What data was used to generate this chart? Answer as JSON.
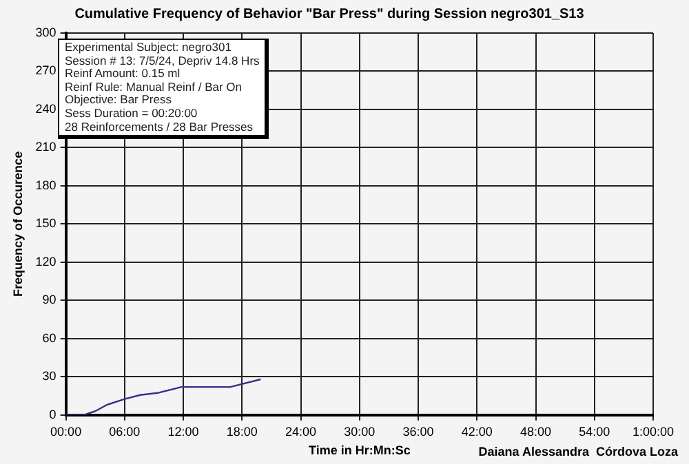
{
  "chart_data": {
    "type": "line",
    "title": "Cumulative Frequency of Behavior \"Bar Press\" during Session negro301_S13",
    "xlabel": "Time in Hr:Mn:Sc",
    "ylabel": "Frequency of Occurence",
    "annotations": [
      "Experimental Subject: negro301",
      "Session # 13: 7/5/24, Depriv 14.8 Hrs",
      "Reinf Amount: 0.15 ml",
      "Reinf Rule: Manual Reinf / Bar On",
      "Objective: Bar Press",
      "Sess Duration = 00:20:00",
      "28 Reinforcements / 28 Bar Presses",
      "Daiana Alessandra  Córdova Loza"
    ],
    "series": [
      {
        "color": "#33338a",
        "x": [
          0,
          1.8,
          3,
          4.2,
          6,
          7.6,
          9.5,
          11.8,
          16.8,
          19.9
        ],
        "values": [
          0,
          0,
          3,
          8,
          12.5,
          15.7,
          17.5,
          22,
          22,
          28
        ]
      }
    ],
    "xlim": [
      0,
      60
    ],
    "xticks": [
      {
        "value": 0,
        "label": "00:00"
      },
      {
        "value": 6,
        "label": "06:00"
      },
      {
        "value": 12,
        "label": "12:00"
      },
      {
        "value": 18,
        "label": "18:00"
      },
      {
        "value": 24,
        "label": "24:00"
      },
      {
        "value": 30,
        "label": "30:00"
      },
      {
        "value": 36,
        "label": "36:00"
      },
      {
        "value": 42,
        "label": "42:00"
      },
      {
        "value": 48,
        "label": "48:00"
      },
      {
        "value": 54,
        "label": "54:00"
      },
      {
        "value": 60,
        "label": "1:00:00"
      }
    ],
    "ylim": [
      0,
      300
    ],
    "yticks": [
      0,
      30,
      60,
      90,
      120,
      150,
      180,
      210,
      240,
      270,
      300
    ],
    "grid": true,
    "marker": "none",
    "line_style": "solid"
  }
}
